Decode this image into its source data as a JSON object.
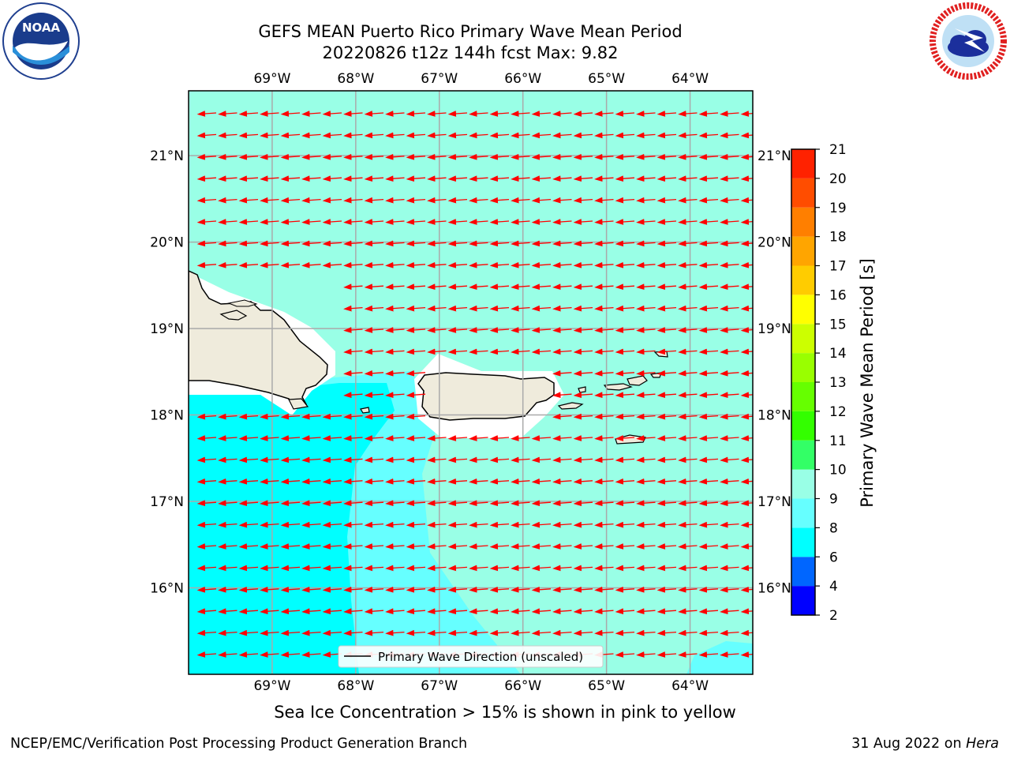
{
  "title": {
    "line1": "GEFS MEAN Puerto Rico Primary Wave Mean Period",
    "line2": "20220826 t12z 144h fcst   Max: 9.82"
  },
  "logos": {
    "left": {
      "icon": "noaa-logo",
      "text": "NOAA",
      "ring_text": "NATIONAL OCEANIC AND ATMOSPHERIC ADMINISTRATION · U.S. DEPARTMENT OF COMMERCE"
    },
    "right": {
      "icon": "nws-logo",
      "ring_text": "NATIONAL WEATHER SERVICE"
    }
  },
  "map": {
    "lon_labels": [
      "69°W",
      "68°W",
      "67°W",
      "66°W",
      "65°W",
      "64°W"
    ],
    "lat_labels": [
      "21°N",
      "20°N",
      "19°N",
      "18°N",
      "17°N",
      "16°N"
    ],
    "lon_values": [
      -69,
      -68,
      -67,
      -66,
      -65,
      -64
    ],
    "lat_values": [
      21,
      20,
      19,
      18,
      17,
      16
    ],
    "extent": {
      "lon_min": -70.0,
      "lon_max": -63.25,
      "lat_min": 15.0,
      "lat_max": 21.75
    },
    "grid": true,
    "arrow_color": "#ff0000",
    "arrow_direction": "westward (east-to-west)",
    "legend_label": "Primary Wave Direction (unscaled)",
    "land_color": "#efebdc",
    "fill_colors": {
      "6-8": "#00ffff",
      "8-9": "#66ffff",
      "9-10": "#99ffe6"
    }
  },
  "colorbar": {
    "label": "Primary Wave Mean Period [s]",
    "ticks": [
      "2",
      "4",
      "6",
      "8",
      "9",
      "10",
      "11",
      "12",
      "13",
      "14",
      "15",
      "16",
      "17",
      "18",
      "19",
      "20",
      "21"
    ],
    "colors": [
      "#0000ff",
      "#0066ff",
      "#00ffff",
      "#66ffff",
      "#99ffe6",
      "#33ff66",
      "#33ff00",
      "#66ff00",
      "#99ff00",
      "#ccff00",
      "#ffff00",
      "#ffcc00",
      "#ffa500",
      "#ff7f00",
      "#ff4d00",
      "#ff2200"
    ]
  },
  "notes": {
    "sea_ice": "Sea Ice Concentration > 15% is shown in pink to yellow"
  },
  "footer": {
    "left": "NCEP/EMC/Verification Post Processing Product Generation Branch",
    "right_date": "31 Aug 2022 on",
    "right_machine": "Hera"
  }
}
